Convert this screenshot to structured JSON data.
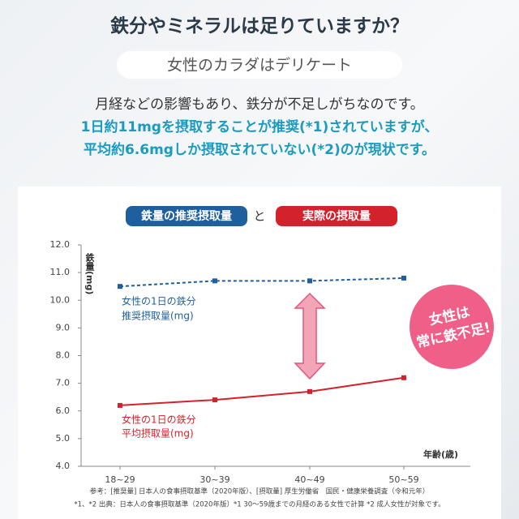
{
  "header": {
    "title": "鉄分やミネラルは足りていますか？",
    "subtitle": "女性のカラダはデリケート",
    "lines": [
      "月経などの影響もあり、鉄分が不足しがちなのです。",
      "1日約11mgを摂取することが推奨(*1)されていますが、",
      "平均約6.6mgしか摂取されていない(*2)のが現状です。"
    ]
  },
  "chart_data": {
    "type": "line",
    "categories": [
      "18~29",
      "30~39",
      "40~49",
      "50~59"
    ],
    "series": [
      {
        "name": "鉄量の推奨摂取量",
        "color": "#1f5f9e",
        "values": [
          10.5,
          10.7,
          10.7,
          10.8
        ]
      },
      {
        "name": "実際の摂取量",
        "color": "#d3222c",
        "values": [
          6.2,
          6.4,
          6.7,
          7.2
        ]
      }
    ],
    "legend_connector": "と",
    "ylabel": "鉄量(mg)",
    "xlabel": "年齢(歳)",
    "ylim": [
      4,
      12
    ],
    "yticks": [
      {
        "value": 4,
        "label": "4.0"
      },
      {
        "value": 5,
        "label": "5.0"
      },
      {
        "value": 6,
        "label": "6.0"
      },
      {
        "value": 7,
        "label": "7.0"
      },
      {
        "value": 8,
        "label": "8.0"
      },
      {
        "value": 9,
        "label": "9.0"
      },
      {
        "value": 10,
        "label": "10.0"
      },
      {
        "value": 11,
        "label": "11.0"
      },
      {
        "value": 12,
        "label": "12.0"
      }
    ],
    "annotations": [
      "女性の1日の鉄分",
      "推奨摂取量(mg)",
      "女性の1日の鉄分",
      "平均摂取量(mg)"
    ],
    "badge": [
      "女性は",
      "常に鉄不足!"
    ],
    "notes": [
      "参考：[推奨量] 日本人の食事摂取基準（2020年版）、[摂取量] 厚生労働省　国民・健康栄養調査（令和元年）",
      "*1、*2 出典：日本人の食事摂取基準（2020年版）*1 30～59歳までの月経のある女性で計算 *2 成人女性が対象です。"
    ]
  }
}
